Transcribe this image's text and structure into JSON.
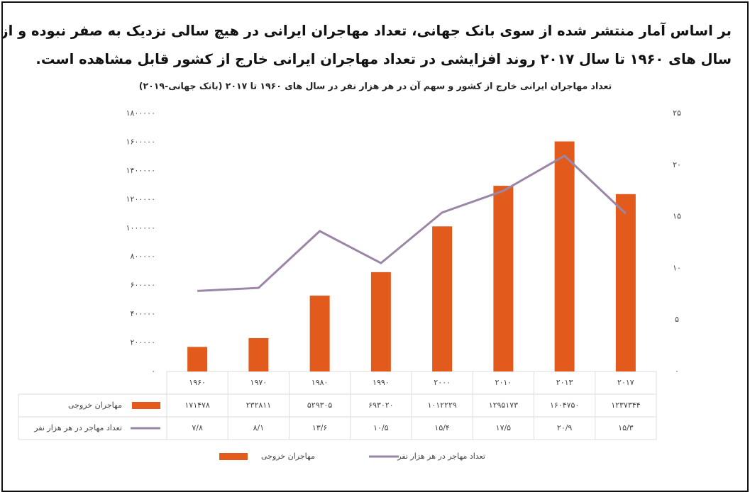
{
  "header_lines": [
    "بر اساس آمار منتشر شده از سوی بانک جهانی، تعداد مهاجران ایرانی در هیچ سالی نزدیک به صفر نبوده و از",
    "سال های ۱۹۶۰ تا سال ۲۰۱۷ روند افزایشی در تعداد مهاجران ایرانی خارج از کشور قابل مشاهده است."
  ],
  "chart_data": {
    "type": "bar_line",
    "title": "تعداد مهاجران ایرانی خارج از کشور و سهم آن در هر هزار نفر در سال های ۱۹۶۰ تا ۲۰۱۷ (بانک جهانی-۲۰۱۹)",
    "categories": [
      "۱۹۶۰",
      "۱۹۷۰",
      "۱۹۸۰",
      "۱۹۹۰",
      "۲۰۰۰",
      "۲۰۱۰",
      "۲۰۱۳",
      "۲۰۱۷"
    ],
    "series": [
      {
        "name": "مهاجران خروجی",
        "color": "#e35b1c",
        "type": "bar",
        "values": [
          171478,
          232811,
          529305,
          693020,
          1012229,
          1295173,
          1604750,
          1237344
        ],
        "value_labels": [
          "۱۷۱۴۷۸",
          "۲۳۲۸۱۱",
          "۵۲۹۳۰۵",
          "۶۹۳۰۲۰",
          "۱۰۱۲۲۲۹",
          "۱۲۹۵۱۷۳",
          "۱۶۰۴۷۵۰",
          "۱۲۳۷۳۴۴"
        ]
      },
      {
        "name": "تعداد مهاجر در هر هزار نفر",
        "color": "#9c86a6",
        "type": "line",
        "axis": "y2",
        "values": [
          7.8,
          8.1,
          13.6,
          10.5,
          15.4,
          17.5,
          20.9,
          15.3
        ],
        "value_labels": [
          "۷/۸",
          "۸/۱",
          "۱۳/۶",
          "۱۰/۵",
          "۱۵/۴",
          "۱۷/۵",
          "۲۰/۹",
          "۱۵/۳"
        ]
      }
    ],
    "ylim": [
      0,
      1800000
    ],
    "yticks": [
      {
        "value": 0,
        "label": "۰"
      },
      {
        "value": 200000,
        "label": "۲۰۰۰۰۰"
      },
      {
        "value": 400000,
        "label": "۴۰۰۰۰۰"
      },
      {
        "value": 600000,
        "label": "۶۰۰۰۰۰"
      },
      {
        "value": 800000,
        "label": "۸۰۰۰۰۰"
      },
      {
        "value": 1000000,
        "label": "۱۰۰۰۰۰۰"
      },
      {
        "value": 1200000,
        "label": "۱۲۰۰۰۰۰"
      },
      {
        "value": 1400000,
        "label": "۱۴۰۰۰۰۰"
      },
      {
        "value": 1600000,
        "label": "۱۶۰۰۰۰۰"
      },
      {
        "value": 1800000,
        "label": "۱۸۰۰۰۰۰"
      }
    ],
    "y2lim": [
      0,
      25
    ],
    "y2ticks": [
      {
        "value": 0,
        "label": "۰"
      },
      {
        "value": 5,
        "label": "۵"
      },
      {
        "value": 10,
        "label": "۱۰"
      },
      {
        "value": 15,
        "label": "۱۵"
      },
      {
        "value": 20,
        "label": "۲۰"
      },
      {
        "value": 25,
        "label": "۲۵"
      }
    ]
  }
}
